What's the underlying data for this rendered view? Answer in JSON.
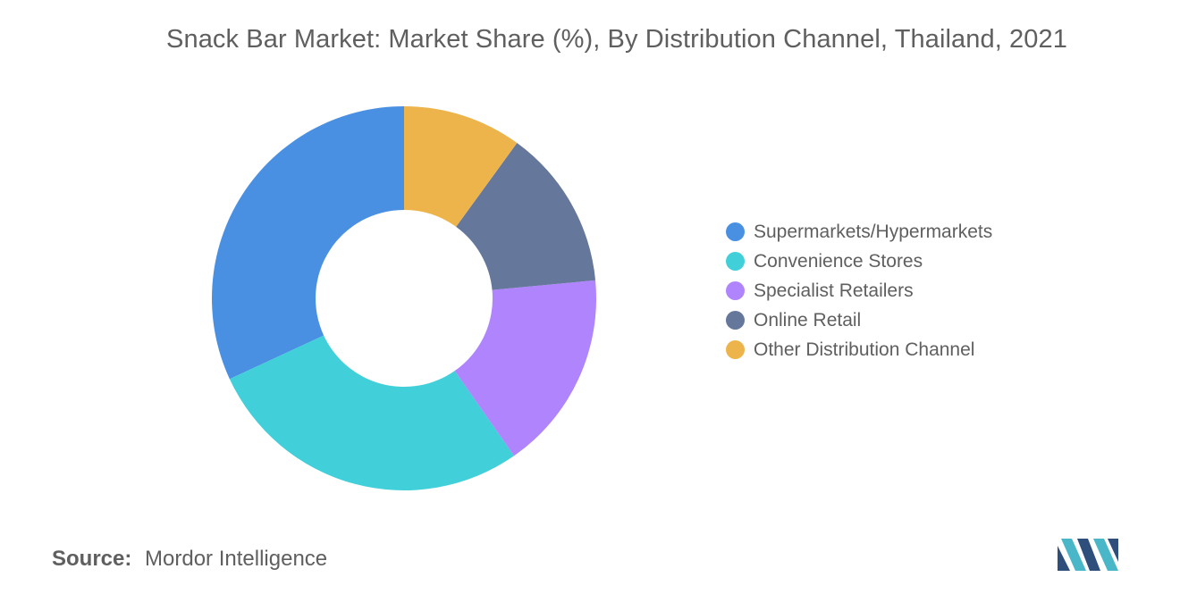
{
  "chart_data": {
    "type": "pie",
    "title": "Snack Bar Market: Market Share (%), By Distribution Channel, Thailand, 2021",
    "categories": [
      "Supermarkets/Hypermarkets",
      "Convenience Stores",
      "Specialist Retailers",
      "Online Retail",
      "Other Distribution Channel"
    ],
    "values": [
      31.9,
      27.8,
      16.8,
      13.5,
      10.0
    ],
    "colors": [
      "#4a90e2",
      "#41d0d9",
      "#b084fc",
      "#65779b",
      "#ecb44b"
    ],
    "legend_position": "right",
    "start_angle_deg": 90,
    "direction": "counterclockwise"
  },
  "source": {
    "label": "Source:",
    "value": "Mordor Intelligence"
  },
  "logo": {
    "icon": "mordor-intelligence-logo",
    "colors": [
      "#2e4f7c",
      "#4ab7c9"
    ]
  }
}
